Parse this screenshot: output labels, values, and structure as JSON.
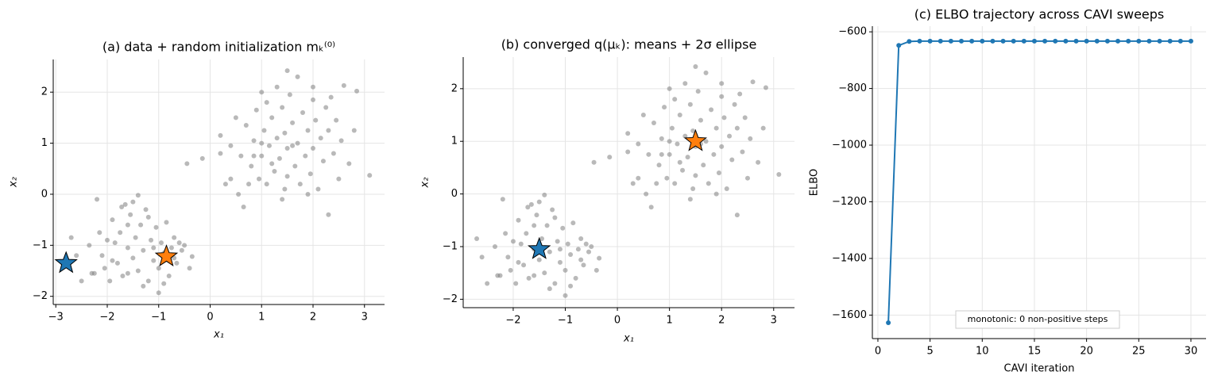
{
  "chart_data": [
    {
      "type": "scatter",
      "title": "(a) data + random initialization mₖ⁽⁰⁾",
      "xlabel": "x₁",
      "ylabel": "x₂",
      "xlim": [
        -3.05,
        3.39
      ],
      "ylim": [
        -2.16,
        2.64
      ],
      "xticks": [
        {
          "value": -3,
          "label": "−3"
        },
        {
          "value": -2,
          "label": "−2"
        },
        {
          "value": -1,
          "label": "−1"
        },
        0,
        1,
        2,
        3
      ],
      "yticks": [
        {
          "value": -2,
          "label": "−2"
        },
        {
          "value": -1,
          "label": "−1"
        },
        0,
        1,
        2
      ],
      "grid": true,
      "series": [
        {
          "color": "#808080",
          "x": [
            -2.7,
            -2.5,
            -2.2,
            -1.4,
            -1.0,
            -0.35,
            -0.4,
            -2.3,
            -2.1,
            -2.0,
            -1.9,
            -1.8,
            -1.75,
            -1.7,
            -1.65,
            -1.6,
            -1.55,
            -1.5,
            -1.45,
            -1.4,
            -1.35,
            -1.3,
            -1.25,
            -1.2,
            -1.15,
            -1.1,
            -1.05,
            -1.0,
            -0.95,
            -0.9,
            -0.85,
            -0.8,
            -0.75,
            -0.7,
            -0.65,
            -0.6,
            -0.55,
            -0.9,
            -1.6,
            -2.35,
            -2.25,
            -1.95,
            -1.85,
            -1.72,
            -1.6,
            -2.15,
            -1.2,
            -0.5,
            -1.1,
            -1.5,
            -2.6,
            -1.9,
            -1.3,
            -0.7,
            -2.05,
            -0.45,
            -0.15,
            3.1,
            2.85,
            2.6,
            2.3,
            0.65,
            1.5,
            1.0,
            0.2,
            0.2,
            0.4,
            0.4,
            0.5,
            0.55,
            0.6,
            0.7,
            0.75,
            0.8,
            0.85,
            0.9,
            0.95,
            1.0,
            1.05,
            1.1,
            1.1,
            1.15,
            1.2,
            1.25,
            1.3,
            1.3,
            1.35,
            1.4,
            1.4,
            1.45,
            1.5,
            1.5,
            1.55,
            1.6,
            1.65,
            1.7,
            1.7,
            1.75,
            1.8,
            1.85,
            1.9,
            1.95,
            2.0,
            2.0,
            2.05,
            2.1,
            2.15,
            2.2,
            2.25,
            2.3,
            2.4,
            2.45,
            2.5,
            2.55,
            2.7,
            2.8,
            1.2,
            1.6,
            1.9,
            0.3,
            2.0,
            1.0,
            2.35,
            1.45,
            0.85
          ],
          "values": [
            -0.85,
            -1.7,
            -0.1,
            -0.02,
            -1.93,
            -1.22,
            -1.45,
            -1.55,
            -1.2,
            -0.9,
            -0.5,
            -1.35,
            -0.75,
            -1.6,
            -0.2,
            -1.05,
            -0.4,
            -1.25,
            -0.85,
            -1.5,
            -0.6,
            -1.1,
            -0.3,
            -1.7,
            -0.9,
            -1.3,
            -0.65,
            -1.45,
            -0.95,
            -1.15,
            -0.55,
            -1.6,
            -1.05,
            -0.85,
            -1.35,
            -0.95,
            -1.1,
            -1.75,
            -1.55,
            -1.0,
            -1.55,
            -1.7,
            -0.95,
            -0.25,
            -0.6,
            -0.75,
            -0.45,
            -1.0,
            -1.05,
            -0.15,
            -1.2,
            -1.3,
            -1.8,
            -1.25,
            -1.45,
            0.6,
            0.7,
            0.37,
            2.02,
            2.13,
            -0.4,
            -0.25,
            2.42,
            2.0,
            0.8,
            1.15,
            0.95,
            0.3,
            1.5,
            0.0,
            0.75,
            1.35,
            0.2,
            0.55,
            1.05,
            1.65,
            0.3,
            0.75,
            1.25,
            1.8,
            0.2,
            0.95,
            1.5,
            0.45,
            2.1,
            1.1,
            0.7,
            1.7,
            -0.1,
            1.2,
            0.35,
            0.9,
            1.95,
            1.4,
            0.55,
            1.0,
            2.3,
            0.2,
            1.6,
            0.75,
            1.25,
            0.4,
            1.85,
            0.9,
            1.45,
            0.1,
            1.1,
            0.65,
            1.7,
            1.25,
            0.8,
            1.45,
            0.3,
            1.05,
            0.6,
            1.25,
            0.6,
            0.95,
            0.0,
            0.2,
            2.1,
            1.0,
            1.9,
            0.1,
            0.75
          ]
        },
        {
          "marker": "star",
          "colors": [
            "#1f77b4",
            "#ff7f0e"
          ],
          "x": [
            -2.8,
            -0.85
          ],
          "values": [
            -1.35,
            -1.22
          ]
        }
      ]
    },
    {
      "type": "scatter",
      "title": "(b) converged q(μₖ): means + 2σ ellipse",
      "xlabel": "x₁",
      "ylabel": "x₂",
      "xlim": [
        -2.96,
        3.4
      ],
      "ylim": [
        -2.16,
        2.6
      ],
      "xticks": [
        {
          "value": -2,
          "label": "−2"
        },
        {
          "value": -1,
          "label": "−1"
        },
        0,
        1,
        2,
        3
      ],
      "yticks": [
        {
          "value": -2,
          "label": "−2"
        },
        {
          "value": -1,
          "label": "−1"
        },
        0,
        1,
        2
      ],
      "grid": true,
      "series": [
        {
          "color": "#808080",
          "x": [
            -2.7,
            -2.5,
            -2.2,
            -1.4,
            -1.0,
            -0.35,
            -0.4,
            -2.3,
            -2.1,
            -2.0,
            -1.9,
            -1.8,
            -1.75,
            -1.7,
            -1.65,
            -1.6,
            -1.55,
            -1.5,
            -1.45,
            -1.4,
            -1.35,
            -1.3,
            -1.25,
            -1.2,
            -1.15,
            -1.1,
            -1.05,
            -1.0,
            -0.95,
            -0.9,
            -0.85,
            -0.8,
            -0.75,
            -0.7,
            -0.65,
            -0.6,
            -0.55,
            -0.9,
            -1.6,
            -2.35,
            -2.25,
            -1.95,
            -1.85,
            -1.72,
            -1.6,
            -2.15,
            -1.2,
            -0.5,
            -1.1,
            -1.5,
            -2.6,
            -1.9,
            -1.3,
            -0.7,
            -2.05,
            -0.45,
            -0.15,
            3.1,
            2.85,
            2.6,
            2.3,
            0.65,
            1.5,
            1.0,
            0.2,
            0.2,
            0.4,
            0.4,
            0.5,
            0.55,
            0.6,
            0.7,
            0.75,
            0.8,
            0.85,
            0.9,
            0.95,
            1.0,
            1.05,
            1.1,
            1.1,
            1.15,
            1.2,
            1.25,
            1.3,
            1.3,
            1.35,
            1.4,
            1.4,
            1.45,
            1.5,
            1.5,
            1.55,
            1.6,
            1.65,
            1.7,
            1.7,
            1.75,
            1.8,
            1.85,
            1.9,
            1.95,
            2.0,
            2.0,
            2.05,
            2.1,
            2.15,
            2.2,
            2.25,
            2.3,
            2.4,
            2.45,
            2.5,
            2.55,
            2.7,
            2.8,
            1.2,
            1.6,
            1.9,
            0.3,
            2.0,
            1.0,
            2.35,
            1.45,
            0.85
          ],
          "values": [
            -0.85,
            -1.7,
            -0.1,
            -0.02,
            -1.93,
            -1.22,
            -1.45,
            -1.55,
            -1.2,
            -0.9,
            -0.5,
            -1.35,
            -0.75,
            -1.6,
            -0.2,
            -1.05,
            -0.4,
            -1.25,
            -0.85,
            -1.5,
            -0.6,
            -1.1,
            -0.3,
            -1.7,
            -0.9,
            -1.3,
            -0.65,
            -1.45,
            -0.95,
            -1.15,
            -0.55,
            -1.6,
            -1.05,
            -0.85,
            -1.35,
            -0.95,
            -1.1,
            -1.75,
            -1.55,
            -1.0,
            -1.55,
            -1.7,
            -0.95,
            -0.25,
            -0.6,
            -0.75,
            -0.45,
            -1.0,
            -1.05,
            -0.15,
            -1.2,
            -1.3,
            -1.8,
            -1.25,
            -1.45,
            0.6,
            0.7,
            0.37,
            2.02,
            2.13,
            -0.4,
            -0.25,
            2.42,
            2.0,
            0.8,
            1.15,
            0.95,
            0.3,
            1.5,
            0.0,
            0.75,
            1.35,
            0.2,
            0.55,
            1.05,
            1.65,
            0.3,
            0.75,
            1.25,
            1.8,
            0.2,
            0.95,
            1.5,
            0.45,
            2.1,
            1.1,
            0.7,
            1.7,
            -0.1,
            1.2,
            0.35,
            0.9,
            1.95,
            1.4,
            0.55,
            1.0,
            2.3,
            0.2,
            1.6,
            0.75,
            1.25,
            0.4,
            1.85,
            0.9,
            1.45,
            0.1,
            1.1,
            0.65,
            1.7,
            1.25,
            0.8,
            1.45,
            0.3,
            1.05,
            0.6,
            1.25,
            0.6,
            0.95,
            0.0,
            0.2,
            2.1,
            1.0,
            1.9,
            0.1,
            0.75
          ]
        },
        {
          "marker": "star",
          "colors": [
            "#1f77b4",
            "#ff7f0e"
          ],
          "x": [
            -1.5,
            1.5
          ],
          "values": [
            -1.05,
            1.0
          ]
        }
      ]
    },
    {
      "type": "line",
      "title": "(c) ELBO trajectory across CAVI sweeps",
      "xlabel": "CAVI iteration",
      "ylabel": "ELBO",
      "xlim": [
        -0.53,
        31.45
      ],
      "ylim": [
        -1683,
        -580
      ],
      "xticks": [
        0,
        5,
        10,
        15,
        20,
        25,
        30
      ],
      "yticks": [
        {
          "value": -1600,
          "label": "−1600"
        },
        {
          "value": -1400,
          "label": "−1400"
        },
        {
          "value": -1200,
          "label": "−1200"
        },
        {
          "value": -1000,
          "label": "−1000"
        },
        {
          "value": -800,
          "label": "−800"
        },
        {
          "value": -600,
          "label": "−600"
        }
      ],
      "grid": true,
      "annotation": "monotonic: 0 non-positive steps",
      "series": [
        {
          "color": "#1f77b4",
          "x": [
            1,
            2,
            3,
            4,
            5,
            6,
            7,
            8,
            9,
            10,
            11,
            12,
            13,
            14,
            15,
            16,
            17,
            18,
            19,
            20,
            21,
            22,
            23,
            24,
            25,
            26,
            27,
            28,
            29,
            30
          ],
          "values": [
            -1627,
            -648,
            -634,
            -633,
            -633,
            -633,
            -633,
            -633,
            -633,
            -633,
            -633,
            -633,
            -633,
            -633,
            -633,
            -633,
            -633,
            -633,
            -633,
            -633,
            -633,
            -633,
            -633,
            -633,
            -633,
            -633,
            -633,
            -633,
            -633,
            -633
          ]
        }
      ]
    }
  ]
}
